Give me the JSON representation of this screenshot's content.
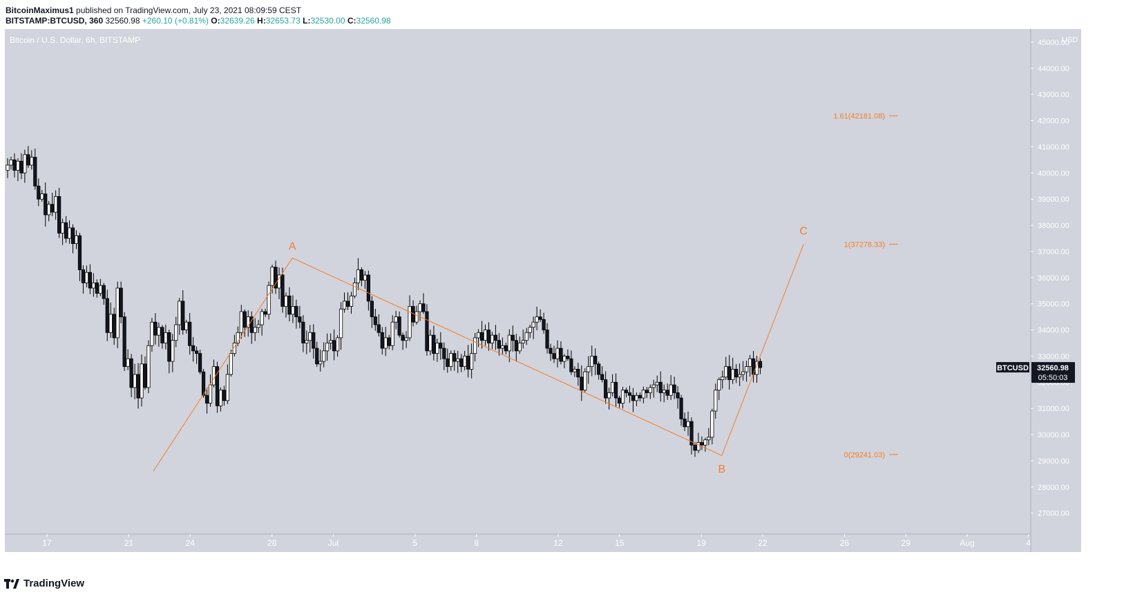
{
  "header": {
    "publisher": "BitcoinMaximus1",
    "published_text": " published on TradingView.com, July 23, 2021 08:09:59 CEST",
    "symbol": "BITSTAMP:BTCUSD, 360",
    "last": "32560.98",
    "change": "+260.10 (+0.81%)",
    "o_label": "O:",
    "o": "32639.26",
    "h_label": "H:",
    "h": "32653.73",
    "l_label": "L:",
    "l": "32530.00",
    "c_label": "C:",
    "c": "32560.98"
  },
  "footer": {
    "brand": "TradingView"
  },
  "chart_data": {
    "type": "candlestick",
    "title": "Bitcoin / U.S. Dollar, 6h, BITSTAMP",
    "currency": "USD",
    "ylim": [
      26200,
      45500
    ],
    "y_ticks": [
      "27000.00",
      "28000.00",
      "29000.00",
      "30000.00",
      "31000.00",
      "32000.00",
      "33000.00",
      "34000.00",
      "35000.00",
      "36000.00",
      "37000.00",
      "38000.00",
      "39000.00",
      "40000.00",
      "41000.00",
      "42000.00",
      "43000.00",
      "44000.00",
      "45000.00"
    ],
    "x_ticks": [
      {
        "label": "17",
        "day": 17
      },
      {
        "label": "21",
        "day": 21
      },
      {
        "label": "24",
        "day": 24
      },
      {
        "label": "28",
        "day": 28
      },
      {
        "label": "Jul",
        "day": 31
      },
      {
        "label": "5",
        "day": 35
      },
      {
        "label": "8",
        "day": 38
      },
      {
        "label": "12",
        "day": 42
      },
      {
        "label": "15",
        "day": 45
      },
      {
        "label": "19",
        "day": 49
      },
      {
        "label": "22",
        "day": 52
      },
      {
        "label": "26",
        "day": 56
      },
      {
        "label": "29",
        "day": 59
      },
      {
        "label": "Aug",
        "day": 62
      },
      {
        "label": "4",
        "day": 65
      }
    ],
    "price_label": {
      "symbol": "BTCUSD",
      "price": "32560.98",
      "countdown": "05:50:03",
      "value": 32560.98
    },
    "waves": [
      {
        "label": "A",
        "day": 29.0,
        "price": 36700
      },
      {
        "label": "B",
        "day": 50.0,
        "price": 29241
      },
      {
        "label": "C",
        "day": 54.0,
        "price": 37278
      }
    ],
    "wave_path": [
      {
        "day": 22.2,
        "price": 28600
      },
      {
        "day": 29.0,
        "price": 36750
      },
      {
        "day": 50.0,
        "price": 29200
      },
      {
        "day": 54.0,
        "price": 37278
      }
    ],
    "fib_levels": [
      {
        "label": "1.61(42181.08)",
        "value": 42181.08
      },
      {
        "label": "1(37278.33)",
        "value": 37278.33
      },
      {
        "label": "0(29241.03)",
        "value": 29241.03
      }
    ],
    "candle_closes": [
      40300,
      40500,
      40100,
      40450,
      40000,
      40700,
      40300,
      40600,
      39500,
      39000,
      39200,
      38400,
      38800,
      38500,
      39100,
      37700,
      38100,
      37500,
      37900,
      37300,
      37600,
      36300,
      35800,
      36200,
      35600,
      35800,
      35400,
      35700,
      35200,
      33900,
      34600,
      33700,
      35600,
      34500,
      32600,
      32900,
      31800,
      32300,
      31400,
      32700,
      31800,
      33400,
      34300,
      33800,
      34100,
      33500,
      33900,
      32800,
      33600,
      34200,
      35100,
      34000,
      34300,
      33400,
      33200,
      33100,
      32400,
      31500,
      31200,
      31900,
      32600,
      31100,
      31700,
      31300,
      32300,
      33100,
      33500,
      33900,
      34700,
      34100,
      34500,
      33900,
      34100,
      34200,
      34700,
      34600,
      35700,
      36400,
      35600,
      36100,
      34900,
      35300,
      34600,
      34900,
      34500,
      34300,
      33500,
      33600,
      33900,
      33300,
      32700,
      32800,
      33200,
      33500,
      33600,
      33200,
      33700,
      34800,
      35100,
      34900,
      35300,
      35800,
      36300,
      35900,
      36100,
      35100,
      34500,
      34200,
      33900,
      33300,
      33700,
      33400,
      34300,
      34500,
      33800,
      33600,
      33700,
      34900,
      34300,
      34700,
      35000,
      34700,
      33200,
      33800,
      33100,
      33500,
      33300,
      32900,
      32600,
      33100,
      32800,
      32900,
      32600,
      33000,
      32500,
      33100,
      33700,
      33900,
      33600,
      34000,
      33500,
      33800,
      33600,
      33300,
      33400,
      33200,
      33800,
      33600,
      33200,
      33500,
      33600,
      33900,
      34100,
      34300,
      34500,
      34400,
      34000,
      33300,
      33100,
      32900,
      33300,
      32800,
      33000,
      32900,
      32400,
      32500,
      32200,
      31700,
      32400,
      32600,
      33000,
      32700,
      32300,
      32100,
      31400,
      31600,
      32000,
      31400,
      31200,
      31700,
      31600,
      31500,
      31300,
      31500,
      31400,
      31700,
      31600,
      31800,
      31900,
      32000,
      31600,
      31700,
      31500,
      31900,
      31600,
      31400,
      30600,
      30300,
      30500,
      29600,
      29400,
      29700,
      29600,
      29800,
      29900,
      30900,
      31700,
      32100,
      32200,
      32600,
      32100,
      32500,
      32200,
      32300,
      32400,
      32600,
      32900,
      32300,
      32800,
      32561
    ]
  }
}
